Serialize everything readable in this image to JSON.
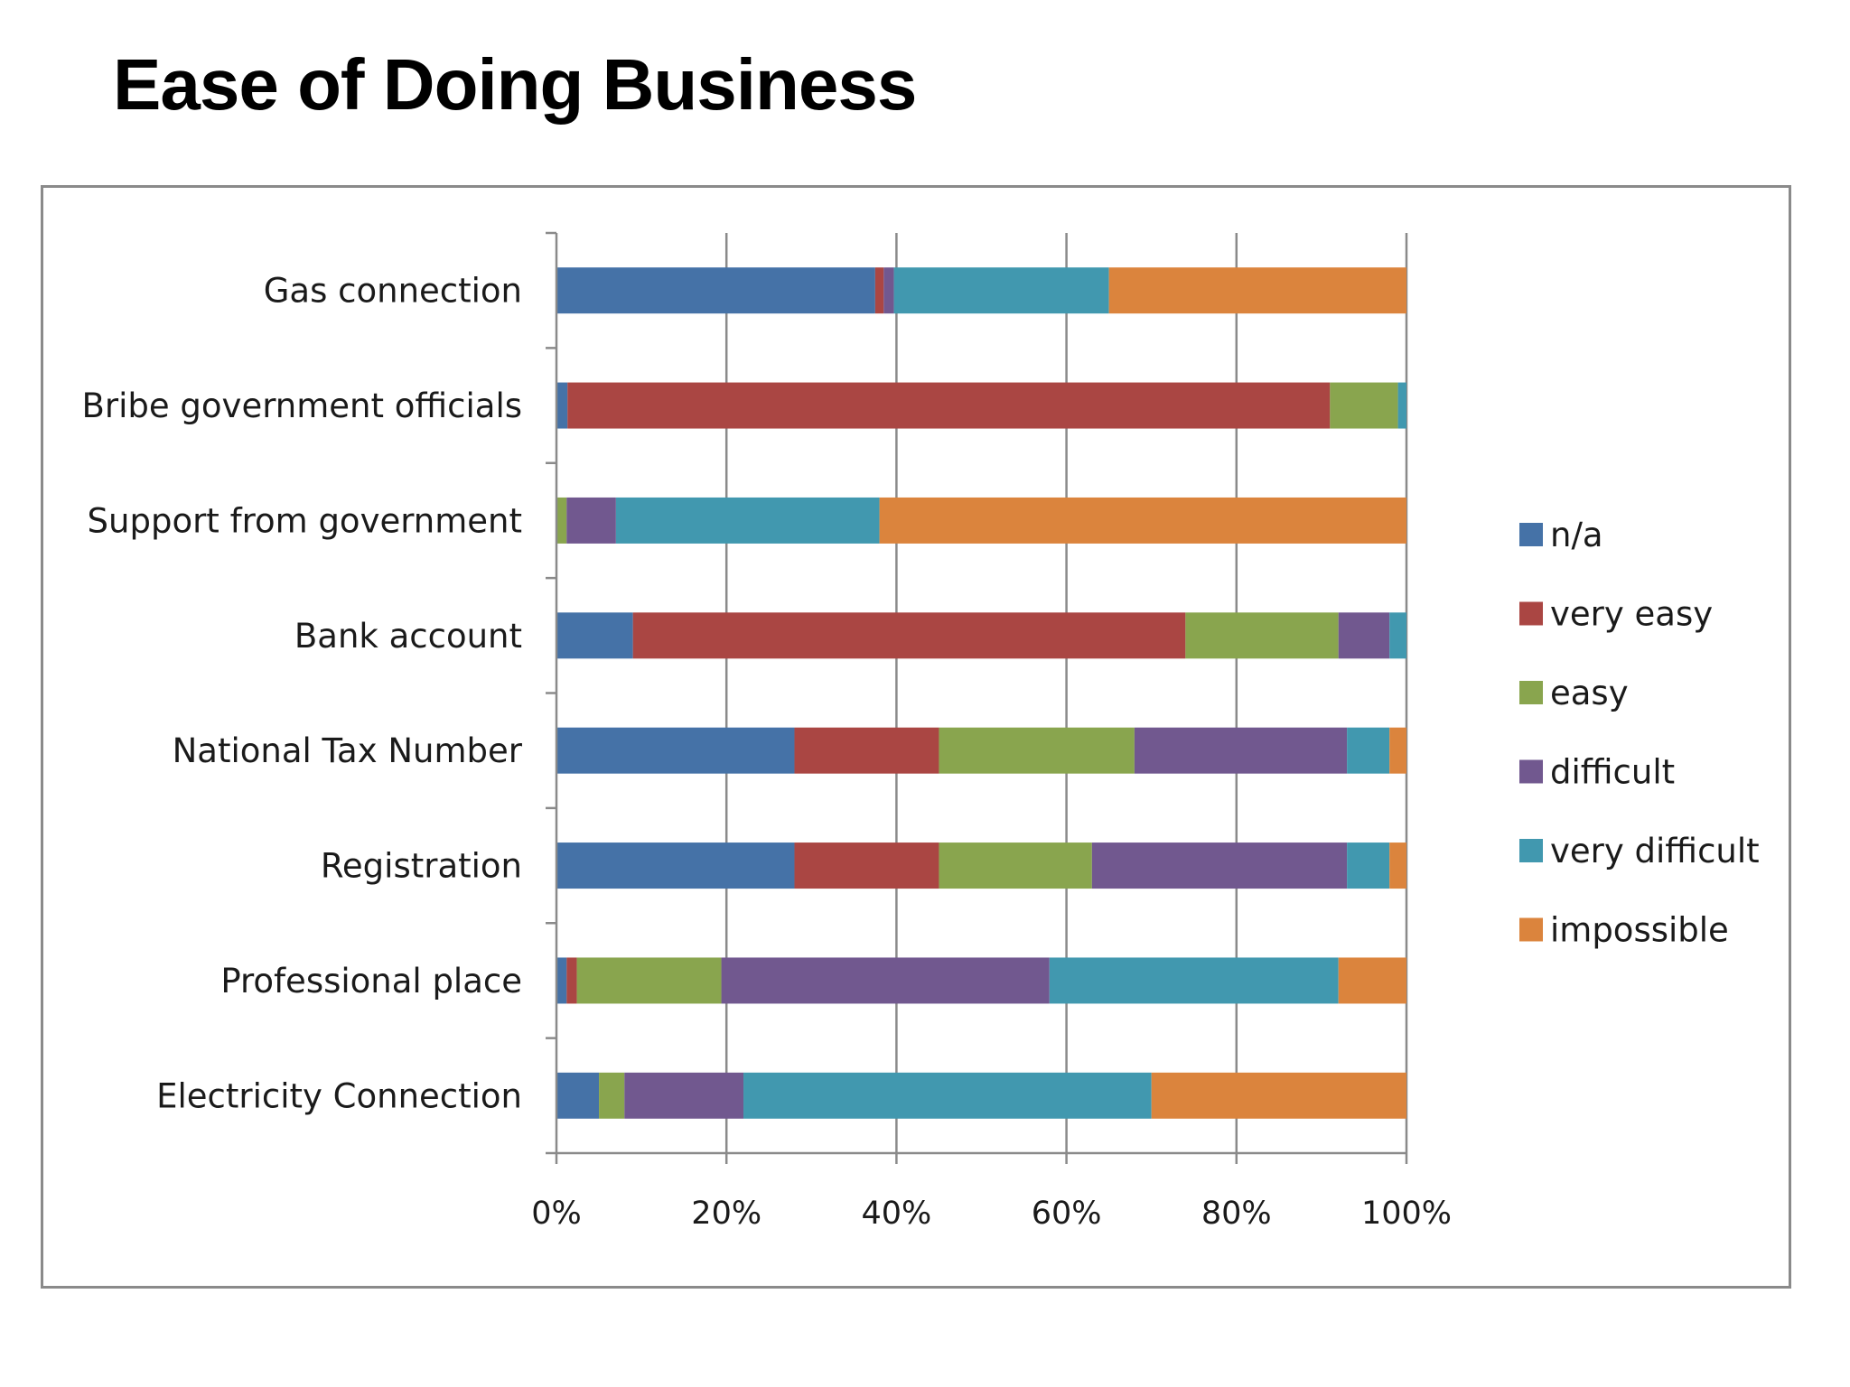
{
  "title": "Ease of Doing Business",
  "chart_data": {
    "type": "bar",
    "orientation": "horizontal",
    "stacked": "percent",
    "categories": [
      "Gas connection",
      "Bribe government officials",
      "Support from government",
      "Bank account",
      "National Tax  Number",
      "Registration",
      "Professional place",
      "Electricity Connection"
    ],
    "series": [
      {
        "name": "n/a",
        "color": "#4572A7",
        "values": [
          37.5,
          1.3,
          0,
          9,
          28,
          28,
          1.2,
          5
        ]
      },
      {
        "name": "very easy",
        "color": "#AA4643",
        "values": [
          1,
          89.7,
          0,
          65,
          17,
          17,
          1.2,
          0
        ]
      },
      {
        "name": "easy",
        "color": "#89A54E",
        "values": [
          0,
          8,
          1.2,
          18,
          23,
          18,
          17,
          3
        ]
      },
      {
        "name": "difficult",
        "color": "#71588F",
        "values": [
          1.2,
          0,
          5.8,
          6,
          25,
          30,
          38.6,
          14
        ]
      },
      {
        "name": "very difficult",
        "color": "#4198AF",
        "values": [
          25.3,
          1,
          31,
          2,
          5,
          5,
          34,
          48
        ]
      },
      {
        "name": "impossible",
        "color": "#DB843D",
        "values": [
          35,
          0,
          62,
          0,
          2,
          2,
          8,
          30
        ]
      }
    ],
    "x_ticks": [
      "0%",
      "20%",
      "40%",
      "60%",
      "80%",
      "100%"
    ],
    "xlim": [
      0,
      100
    ],
    "grid": "vertical",
    "legend": "right"
  }
}
